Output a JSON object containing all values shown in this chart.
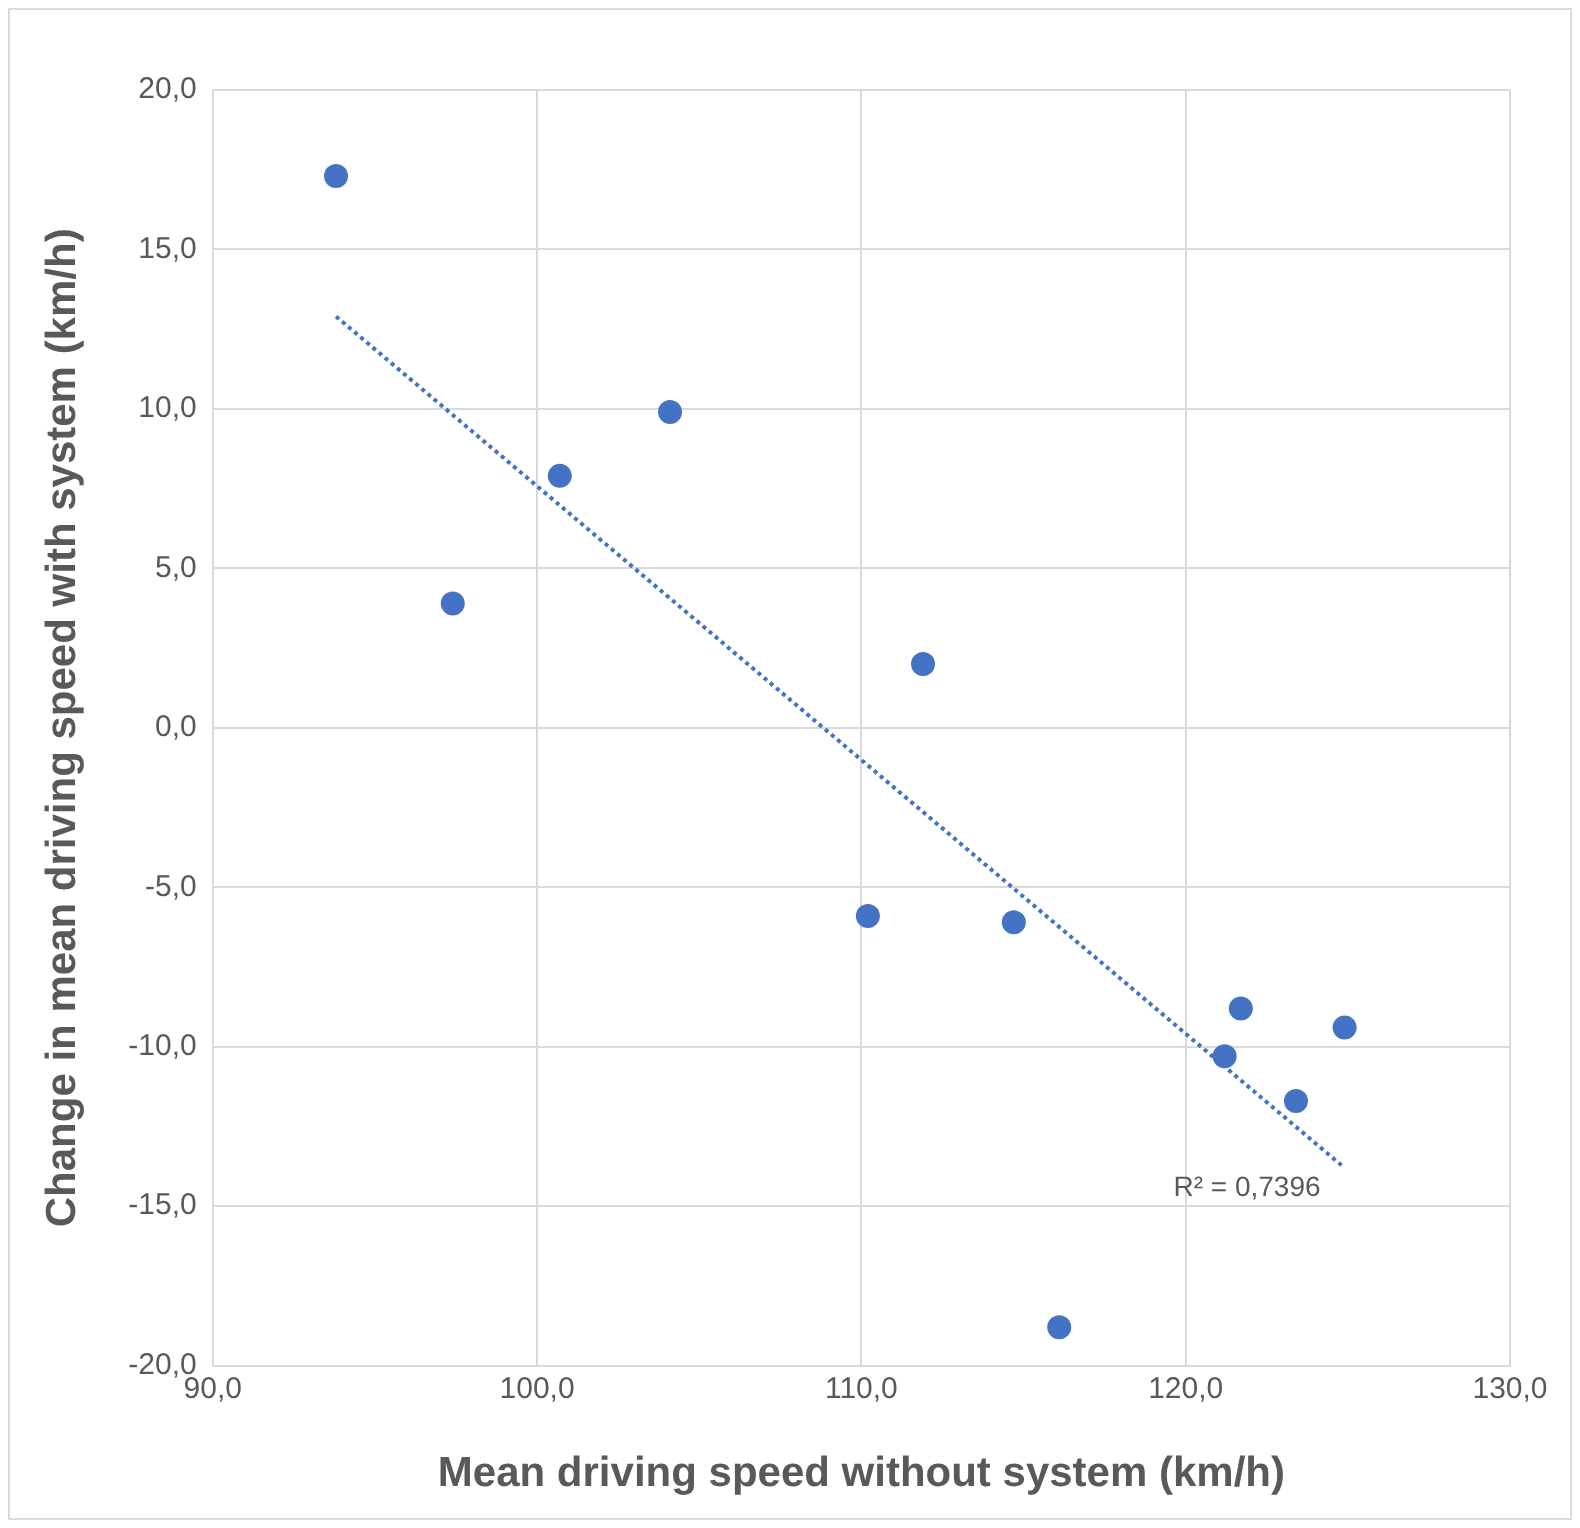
{
  "chart_data": {
    "type": "scatter",
    "xlabel": "Mean driving speed without system (km/h)",
    "ylabel": "Change in mean driving speed with system (km/h)",
    "x": [
      93.8,
      97.4,
      100.7,
      104.1,
      110.2,
      111.9,
      114.7,
      116.1,
      121.2,
      121.7,
      123.4,
      124.9
    ],
    "series": [
      {
        "type": "scatter",
        "color": "#4472c4",
        "marker": "circle",
        "values": [
          17.3,
          3.9,
          7.9,
          9.9,
          -5.9,
          2.0,
          -6.1,
          -18.8,
          -10.3,
          -8.8,
          -11.7,
          -9.4
        ]
      },
      {
        "type": "line",
        "color": "#4472c4",
        "line_style": "dotted",
        "marker": "none",
        "x": [
          93.8,
          124.9
        ],
        "values": [
          12.9,
          -13.8
        ]
      }
    ],
    "xlim": [
      90,
      130
    ],
    "xticks": [
      {
        "value": 90,
        "label": "90,0"
      },
      {
        "value": 100,
        "label": "100,0"
      },
      {
        "value": 110,
        "label": "110,0"
      },
      {
        "value": 120,
        "label": "120,0"
      },
      {
        "value": 130,
        "label": "130,0"
      }
    ],
    "ylim": [
      -20,
      20
    ],
    "yticks": [
      {
        "value": -20,
        "label": "-20,0"
      },
      {
        "value": -15,
        "label": "-15,0"
      },
      {
        "value": -10,
        "label": "-10,0"
      },
      {
        "value": -5,
        "label": "-5,0"
      },
      {
        "value": 0,
        "label": "0,0"
      },
      {
        "value": 5,
        "label": "5,0"
      },
      {
        "value": 10,
        "label": "10,0"
      },
      {
        "value": 15,
        "label": "15,0"
      },
      {
        "value": 20,
        "label": "20,0"
      }
    ],
    "grid": true,
    "legend": false,
    "annotations": [
      "R² = 0,7396"
    ]
  }
}
